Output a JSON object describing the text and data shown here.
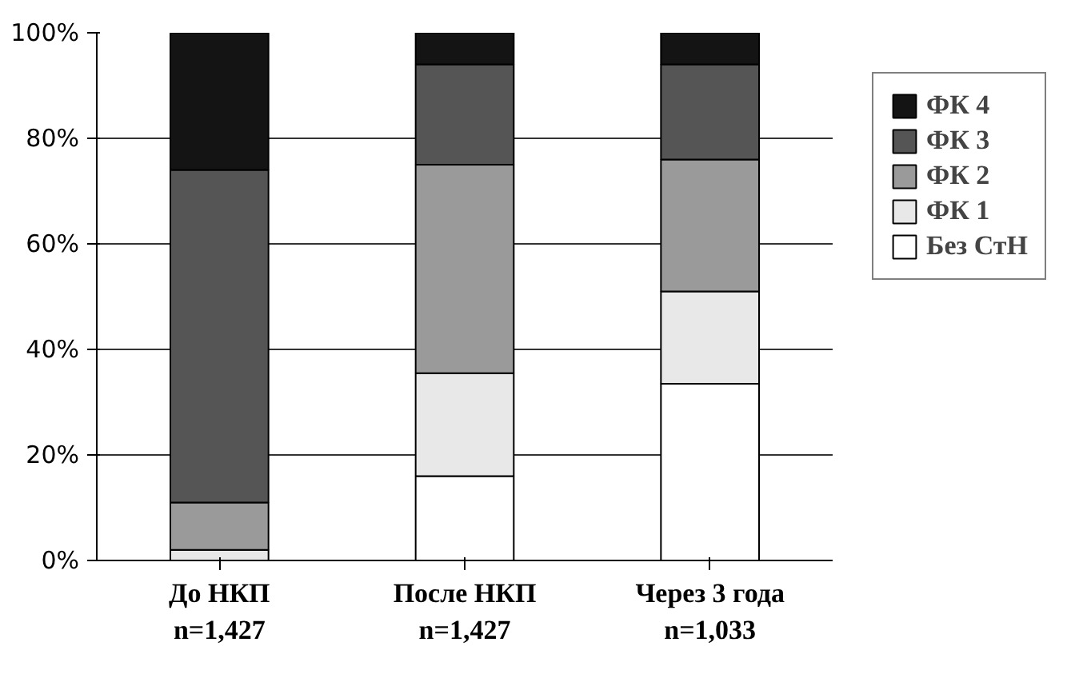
{
  "chart_data": {
    "type": "bar",
    "stacked": true,
    "categories": [
      "До НКП\nn=1,427",
      "После НКП\nn=1,427",
      "Через 3 года\nn=1,033"
    ],
    "series": [
      {
        "name": "Без СтН",
        "color": "#ffffff",
        "values": [
          0,
          16,
          33.5
        ]
      },
      {
        "name": "ФК 1",
        "color": "#e8e8e8",
        "values": [
          2,
          19.5,
          17.5
        ]
      },
      {
        "name": "ФК 2",
        "color": "#9a9a9a",
        "values": [
          9,
          39.5,
          25
        ]
      },
      {
        "name": "ФК 3",
        "color": "#555555",
        "values": [
          63,
          19,
          18
        ]
      },
      {
        "name": "ФК 4",
        "color": "#141414",
        "values": [
          26,
          6,
          6
        ]
      }
    ],
    "ylim": [
      0,
      100
    ],
    "yticks": [
      {
        "value": 0,
        "label": "0%"
      },
      {
        "value": 20,
        "label": "20%"
      },
      {
        "value": 40,
        "label": "40%"
      },
      {
        "value": 60,
        "label": "60%"
      },
      {
        "value": 80,
        "label": "80%"
      },
      {
        "value": 100,
        "label": "100%"
      }
    ],
    "grid": "y",
    "legend": "right"
  }
}
